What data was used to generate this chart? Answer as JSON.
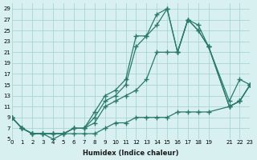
{
  "xlabel": "Humidex (Indice chaleur)",
  "bg_color": "#d8f0f0",
  "line_color": "#2a7a6a",
  "grid_color": "#a0d0d0",
  "xlim": [
    0,
    23
  ],
  "ylim": [
    5,
    29
  ],
  "yticks": [
    5,
    7,
    9,
    11,
    13,
    15,
    17,
    19,
    21,
    23,
    25,
    27,
    29
  ],
  "xticks": [
    0,
    1,
    2,
    3,
    4,
    5,
    6,
    7,
    8,
    9,
    10,
    11,
    12,
    13,
    14,
    15,
    16,
    17,
    18,
    19,
    21,
    22,
    23
  ],
  "line1_x": [
    0,
    1,
    2,
    3,
    4,
    5,
    6,
    7,
    8,
    9,
    10,
    11,
    12,
    13,
    14,
    15,
    16,
    17,
    18,
    19,
    21,
    22,
    23
  ],
  "line1_y": [
    9,
    7,
    6,
    6,
    5,
    6,
    6,
    6,
    6,
    7,
    8,
    8,
    9,
    9,
    9,
    9,
    10,
    10,
    10,
    10,
    11,
    12,
    15
  ],
  "line2_x": [
    0,
    1,
    2,
    3,
    4,
    5,
    6,
    7,
    8,
    9,
    10,
    11,
    12,
    13,
    14,
    15,
    16,
    17,
    18,
    19,
    21,
    22,
    23
  ],
  "line2_y": [
    9,
    7,
    6,
    6,
    6,
    6,
    7,
    7,
    8,
    11,
    12,
    13,
    14,
    16,
    21,
    21,
    21,
    27,
    26,
    22,
    12,
    16,
    15
  ],
  "line3_x": [
    0,
    1,
    2,
    3,
    4,
    5,
    6,
    7,
    8,
    9,
    10,
    11,
    12,
    13,
    14,
    15,
    16,
    17,
    18,
    19,
    21,
    22,
    23
  ],
  "line3_y": [
    9,
    7,
    6,
    6,
    6,
    6,
    7,
    7,
    9,
    12,
    13,
    15,
    22,
    24,
    26,
    29,
    21,
    27,
    25,
    22,
    11,
    12,
    15
  ],
  "line4_x": [
    0,
    1,
    2,
    3,
    4,
    5,
    6,
    7,
    8,
    9,
    10,
    11,
    12,
    13,
    14,
    15,
    16,
    17,
    18,
    19,
    21,
    22,
    23
  ],
  "line4_y": [
    9,
    7,
    6,
    6,
    6,
    6,
    7,
    7,
    10,
    13,
    14,
    16,
    24,
    24,
    28,
    29,
    21,
    27,
    25,
    22,
    11,
    12,
    15
  ]
}
